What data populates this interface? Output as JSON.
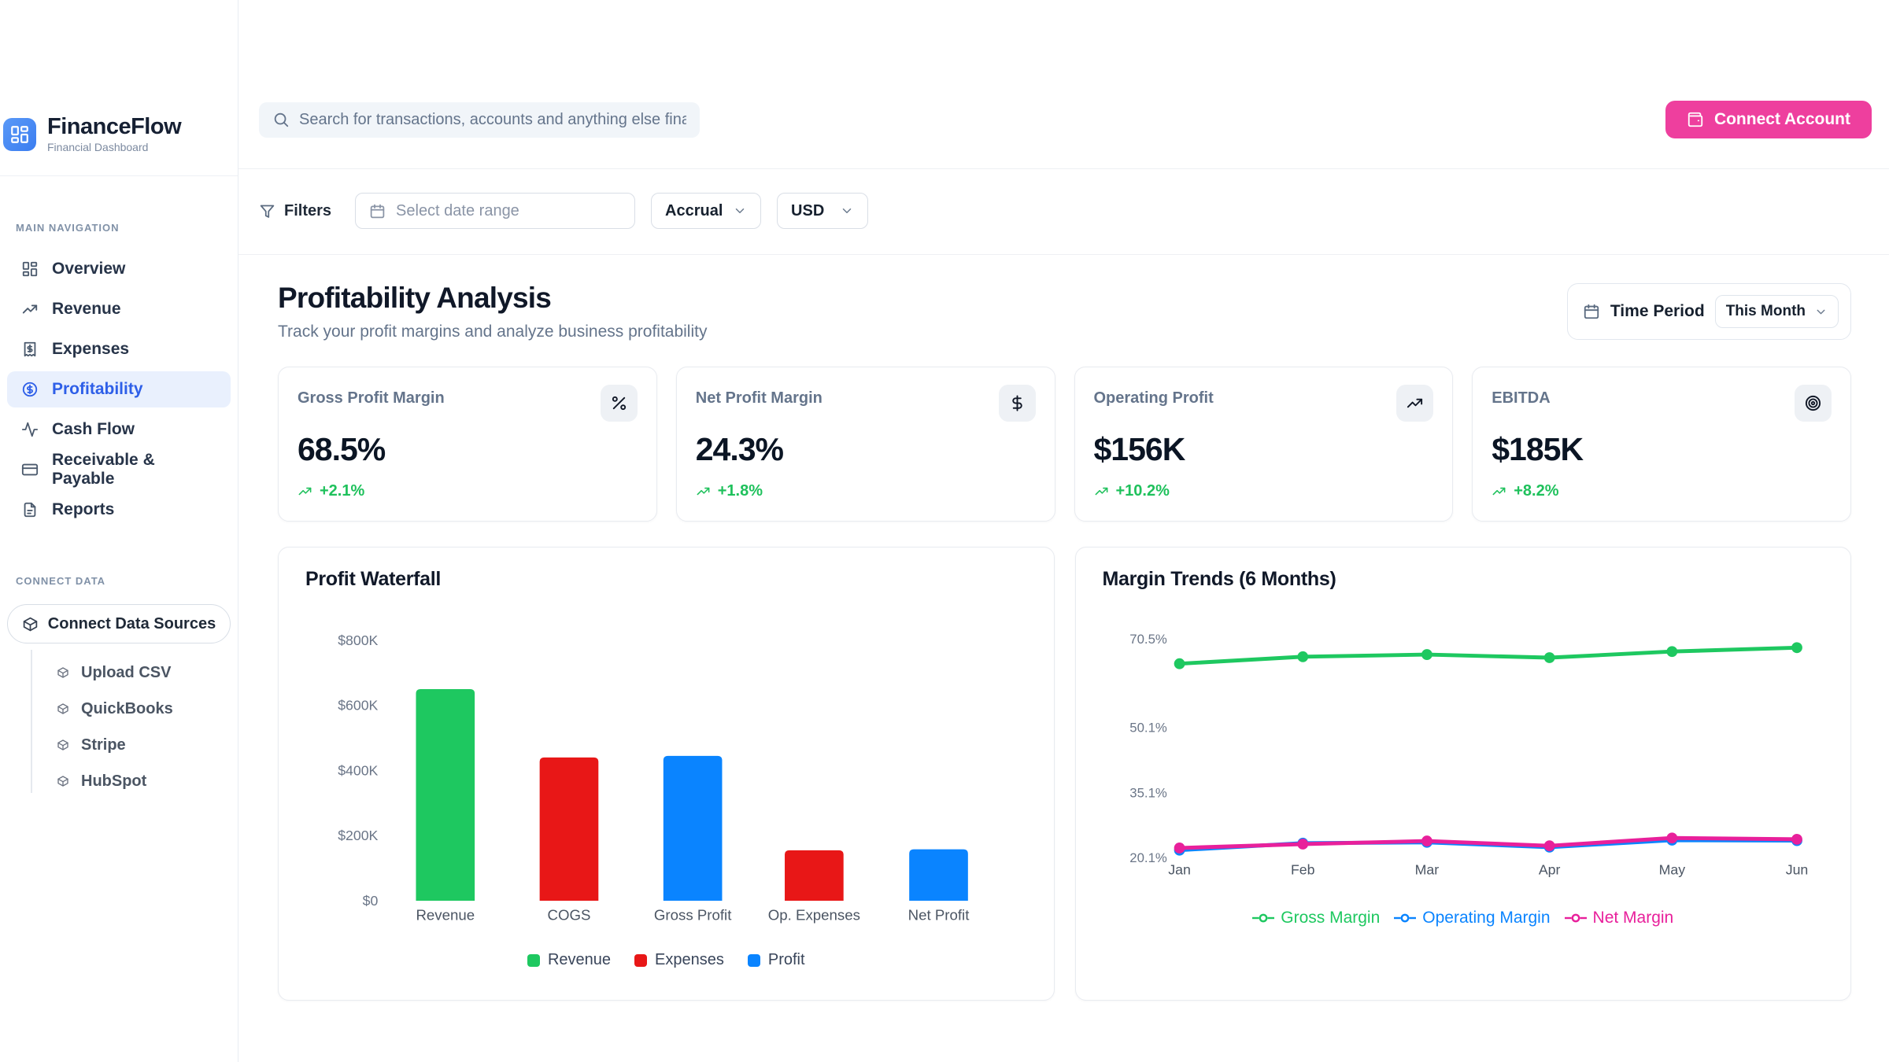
{
  "brand": {
    "name": "FinanceFlow",
    "tagline": "Financial Dashboard"
  },
  "sidebar": {
    "main_nav_label": "MAIN NAVIGATION",
    "items": [
      {
        "label": "Overview",
        "icon": "layout-dashboard-icon",
        "active": false
      },
      {
        "label": "Revenue",
        "icon": "trending-up-icon",
        "active": false
      },
      {
        "label": "Expenses",
        "icon": "receipt-icon",
        "active": false
      },
      {
        "label": "Profitability",
        "icon": "circle-dollar-icon",
        "active": true
      },
      {
        "label": "Cash Flow",
        "icon": "activity-icon",
        "active": false
      },
      {
        "label": "Receivable & Payable",
        "icon": "credit-card-icon",
        "active": false
      },
      {
        "label": "Reports",
        "icon": "file-text-icon",
        "active": false
      }
    ],
    "connect_data_label": "CONNECT DATA",
    "connect_button_label": "Connect Data Sources",
    "sources": [
      "Upload CSV",
      "QuickBooks",
      "Stripe",
      "HubSpot"
    ]
  },
  "topbar": {
    "search_placeholder": "Search for transactions, accounts and anything else financial",
    "connect_account_label": "Connect Account"
  },
  "filters": {
    "filters_label": "Filters",
    "date_range_placeholder": "Select date range",
    "accounting_basis": "Accrual",
    "currency": "USD"
  },
  "page": {
    "title": "Profitability Analysis",
    "subtitle": "Track your profit margins and analyze business profitability",
    "time_period_label": "Time Period",
    "time_period_value": "This Month"
  },
  "kpis": [
    {
      "label": "Gross Profit Margin",
      "value": "68.5%",
      "change": "+2.1%",
      "icon": "percent-icon"
    },
    {
      "label": "Net Profit Margin",
      "value": "24.3%",
      "change": "+1.8%",
      "icon": "dollar-icon"
    },
    {
      "label": "Operating Profit",
      "value": "$156K",
      "change": "+10.2%",
      "icon": "trending-up-icon"
    },
    {
      "label": "EBITDA",
      "value": "$185K",
      "change": "+8.2%",
      "icon": "target-icon"
    }
  ],
  "colors": {
    "brand_blue": "#3b7df0",
    "active_nav_blue": "#2e5fe8",
    "pink_accent": "#ee3f9e",
    "positive_green": "#1fc15c",
    "chart_green": "#1ec860",
    "chart_red": "#e81717",
    "chart_blue": "#0a84ff",
    "chart_pink": "#e8209b"
  },
  "chart_data": [
    {
      "type": "bar",
      "title": "Profit Waterfall",
      "categories": [
        "Revenue",
        "COGS",
        "Gross Profit",
        "Op. Expenses",
        "Net Profit"
      ],
      "values": [
        650,
        440,
        445,
        155,
        158
      ],
      "unit": "K USD",
      "bar_colors": [
        "#1ec860",
        "#e81717",
        "#0a84ff",
        "#e81717",
        "#0a84ff"
      ],
      "ylim": [
        0,
        800
      ],
      "ytick_values": [
        0,
        200,
        400,
        600,
        800
      ],
      "ytick_labels": [
        "$0",
        "$200K",
        "$400K",
        "$600K",
        "$800K"
      ],
      "grid": false,
      "legend_position": "bottom",
      "legend": [
        {
          "label": "Revenue",
          "color": "#1ec860"
        },
        {
          "label": "Expenses",
          "color": "#e81717"
        },
        {
          "label": "Profit",
          "color": "#0a84ff"
        }
      ]
    },
    {
      "type": "line",
      "title": "Margin Trends (6 Months)",
      "x": [
        "Jan",
        "Feb",
        "Mar",
        "Apr",
        "May",
        "Jun"
      ],
      "ytick_values": [
        20.1,
        35.1,
        50.1,
        70.5
      ],
      "ytick_labels": [
        "20.1%",
        "35.1%",
        "50.1%",
        "70.5%"
      ],
      "ylim": [
        18,
        75
      ],
      "grid": false,
      "legend_position": "bottom",
      "series": [
        {
          "name": "Gross Margin",
          "color": "#1ec860",
          "values": [
            64.8,
            66.4,
            66.9,
            66.2,
            67.6,
            68.5
          ]
        },
        {
          "name": "Operating Margin",
          "color": "#0a84ff",
          "values": [
            21.8,
            23.4,
            23.6,
            22.5,
            24.1,
            24.0
          ]
        },
        {
          "name": "Net Margin",
          "color": "#e8209b",
          "values": [
            22.3,
            23.2,
            23.9,
            22.8,
            24.6,
            24.3
          ]
        }
      ]
    }
  ]
}
